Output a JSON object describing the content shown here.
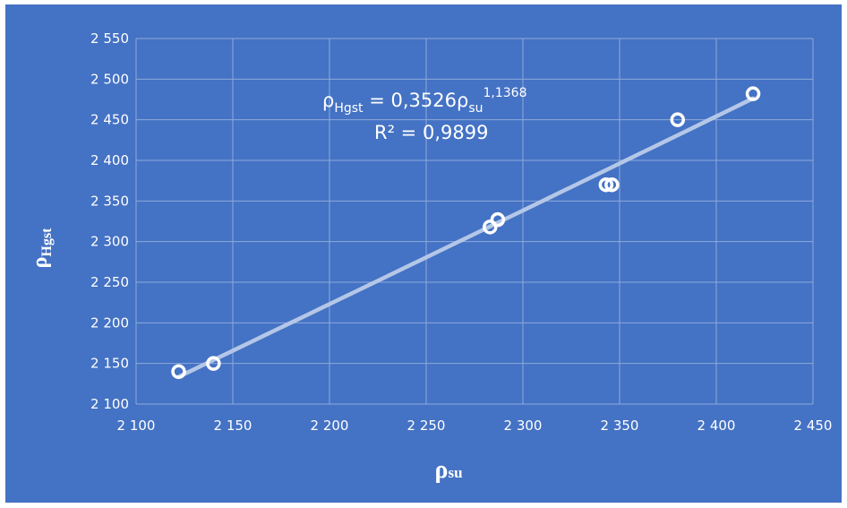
{
  "chart_data": {
    "type": "scatter",
    "x_axis": {
      "label_main": "ρ",
      "label_sub": "su",
      "min": 2100,
      "max": 2450,
      "ticks": [
        2100,
        2150,
        2200,
        2250,
        2300,
        2350,
        2400,
        2450
      ],
      "tick_labels": [
        "2 100",
        "2 150",
        "2 200",
        "2 250",
        "2 300",
        "2 350",
        "2 400",
        "2 450"
      ]
    },
    "y_axis": {
      "label_main": "ρ",
      "label_sub": "Hgst",
      "min": 2100,
      "max": 2550,
      "ticks": [
        2100,
        2150,
        2200,
        2250,
        2300,
        2350,
        2400,
        2450,
        2500,
        2550
      ],
      "tick_labels": [
        "2 100",
        "2 150",
        "2 200",
        "2 250",
        "2 300",
        "2 350",
        "2 400",
        "2 450",
        "2 500",
        "2 550"
      ]
    },
    "points": [
      {
        "x": 2122,
        "y": 2140
      },
      {
        "x": 2140,
        "y": 2150
      },
      {
        "x": 2283,
        "y": 2318
      },
      {
        "x": 2287,
        "y": 2327
      },
      {
        "x": 2343,
        "y": 2370
      },
      {
        "x": 2346,
        "y": 2370
      },
      {
        "x": 2380,
        "y": 2450
      },
      {
        "x": 2419,
        "y": 2482
      }
    ],
    "trendline": {
      "type": "power",
      "coefficient": 0.3526,
      "exponent": 1.1368,
      "x_range": [
        2122,
        2419
      ],
      "equation": {
        "lhs_main": "ρ",
        "lhs_sub": "Hgst",
        "mid": " = 0,3526ρ",
        "rhs_sub": "su",
        "exponent": "1,1368"
      },
      "r_squared_label": "R² = 0,9899"
    },
    "grid": true,
    "colors": {
      "background": "#4472c4",
      "gridline": "#8eaadb",
      "marker_stroke": "#ffffff",
      "trendline": "#b4c7e7",
      "text": "#ffffff"
    }
  }
}
